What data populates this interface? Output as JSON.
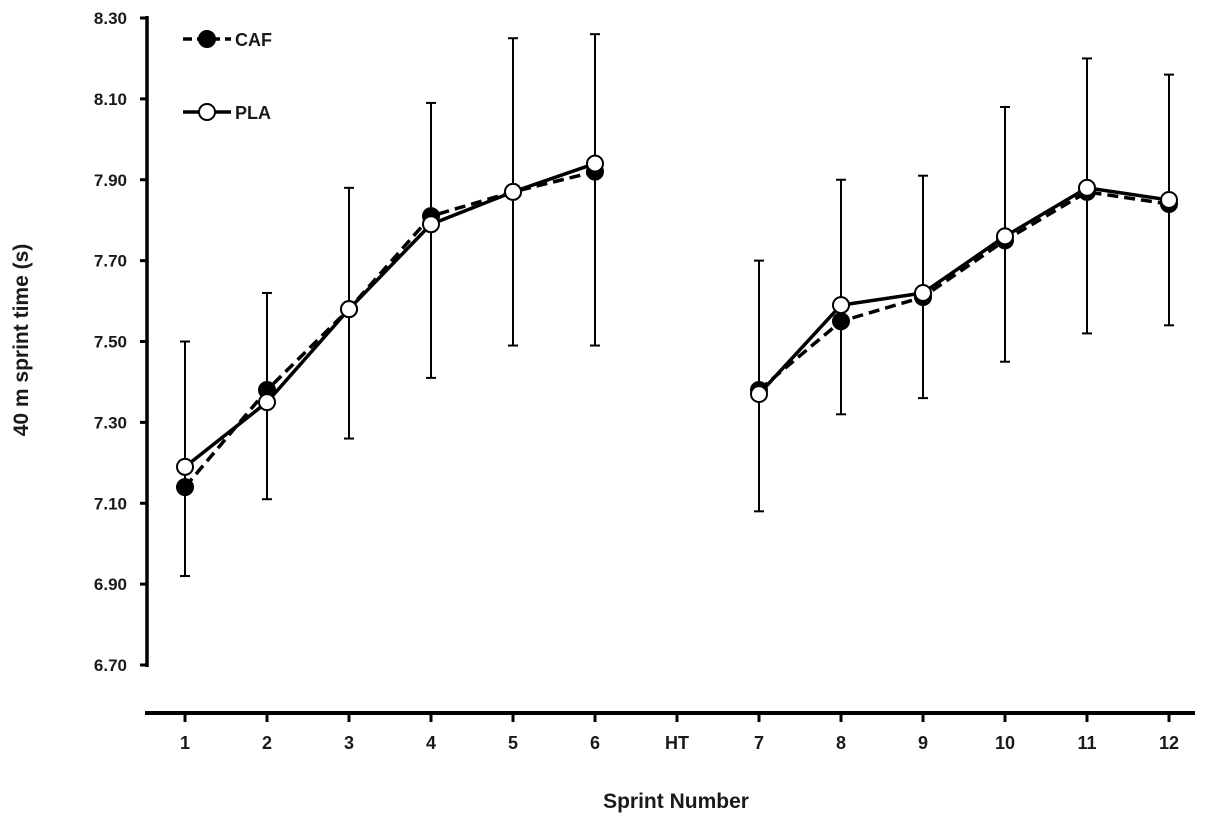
{
  "chart_data": {
    "type": "line",
    "title": "",
    "xlabel": "Sprint Number",
    "ylabel": "40 m sprint time (s)",
    "categories": [
      "1",
      "2",
      "3",
      "4",
      "5",
      "6",
      "HT",
      "7",
      "8",
      "9",
      "10",
      "11",
      "12"
    ],
    "yticks": [
      "8.30",
      "8.10",
      "7.90",
      "7.70",
      "7.50",
      "7.30",
      "7.10",
      "6.90",
      "6.70"
    ],
    "ylim": [
      6.7,
      8.3
    ],
    "grid": false,
    "legend_position": "top-left",
    "series": [
      {
        "name": "CAF",
        "marker": "filled-circle",
        "line": "dashed",
        "values": [
          7.14,
          7.38,
          7.58,
          7.81,
          7.87,
          7.92,
          null,
          7.38,
          7.55,
          7.61,
          7.75,
          7.87,
          7.84
        ]
      },
      {
        "name": "PLA",
        "marker": "open-circle",
        "line": "solid",
        "values": [
          7.19,
          7.35,
          7.58,
          7.79,
          7.87,
          7.94,
          null,
          7.37,
          7.59,
          7.62,
          7.76,
          7.88,
          7.85
        ]
      }
    ],
    "error_bars": {
      "upper": [
        7.5,
        7.62,
        7.88,
        8.09,
        8.25,
        8.26,
        null,
        7.7,
        7.9,
        7.91,
        8.08,
        8.2,
        8.16
      ],
      "lower": [
        6.92,
        7.11,
        7.26,
        7.41,
        7.49,
        7.49,
        null,
        7.08,
        7.32,
        7.36,
        7.45,
        7.52,
        7.54
      ]
    },
    "colors": {
      "line": "#000000",
      "marker_open_fill": "#ffffff"
    }
  }
}
